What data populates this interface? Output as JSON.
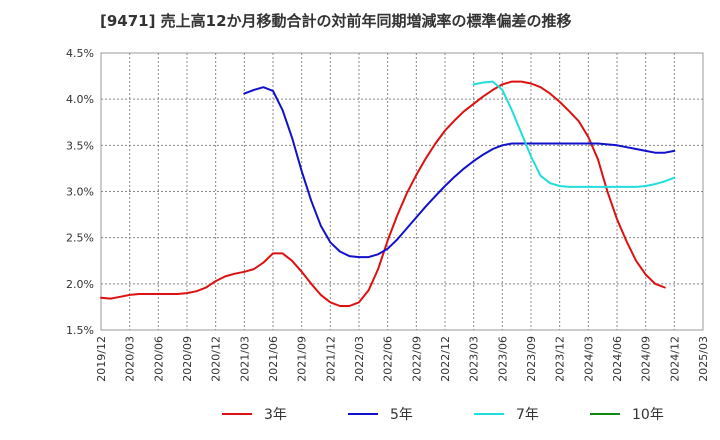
{
  "chart_data": {
    "type": "line",
    "title": "[9471]  売上高12か月移動合計の対前年同期増減率の標準偏差の推移",
    "xlabel": "",
    "ylabel": "",
    "x_range": [
      "2019-12",
      "2025-03"
    ],
    "ylim": [
      1.5,
      4.5
    ],
    "y_ticks": [
      "1.5%",
      "2.0%",
      "2.5%",
      "3.0%",
      "3.5%",
      "4.0%",
      "4.5%"
    ],
    "y_tick_values": [
      1.5,
      2.0,
      2.5,
      3.0,
      3.5,
      4.0,
      4.5
    ],
    "x_ticks": [
      "2019/12",
      "2020/03",
      "2020/06",
      "2020/09",
      "2020/12",
      "2021/03",
      "2021/06",
      "2021/09",
      "2021/12",
      "2022/03",
      "2022/06",
      "2022/09",
      "2022/12",
      "2023/03",
      "2023/06",
      "2023/09",
      "2023/12",
      "2024/03",
      "2024/06",
      "2024/09",
      "2024/12",
      "2025/03"
    ],
    "grid": true,
    "legend_position": "bottom",
    "series": [
      {
        "name": "3年",
        "color": "#dd1111",
        "x": [
          "2019-12",
          "2020-01",
          "2020-02",
          "2020-03",
          "2020-04",
          "2020-05",
          "2020-06",
          "2020-07",
          "2020-08",
          "2020-09",
          "2020-10",
          "2020-11",
          "2020-12",
          "2021-01",
          "2021-02",
          "2021-03",
          "2021-04",
          "2021-05",
          "2021-06",
          "2021-07",
          "2021-08",
          "2021-09",
          "2021-10",
          "2021-11",
          "2021-12",
          "2022-01",
          "2022-02",
          "2022-03",
          "2022-04",
          "2022-05",
          "2022-06",
          "2022-07",
          "2022-08",
          "2022-09",
          "2022-10",
          "2022-11",
          "2022-12",
          "2023-01",
          "2023-02",
          "2023-03",
          "2023-04",
          "2023-05",
          "2023-06",
          "2023-07",
          "2023-08",
          "2023-09",
          "2023-10",
          "2023-11",
          "2023-12",
          "2024-01",
          "2024-02",
          "2024-03",
          "2024-04",
          "2024-05",
          "2024-06",
          "2024-07",
          "2024-08",
          "2024-09",
          "2024-10",
          "2024-11",
          "2024-12"
        ],
        "values": [
          1.85,
          1.84,
          1.86,
          1.88,
          1.89,
          1.89,
          1.89,
          1.89,
          1.89,
          1.9,
          1.92,
          1.96,
          2.03,
          2.08,
          2.11,
          2.13,
          2.16,
          2.23,
          2.33,
          2.33,
          2.25,
          2.13,
          2.0,
          1.88,
          1.8,
          1.76,
          1.76,
          1.8,
          1.93,
          2.16,
          2.47,
          2.74,
          2.98,
          3.18,
          3.36,
          3.52,
          3.66,
          3.77,
          3.87,
          3.95,
          4.03,
          4.1,
          4.16,
          4.19,
          4.19,
          4.17,
          4.13,
          4.06,
          3.97,
          3.87,
          3.76,
          3.59,
          3.35,
          3.0,
          2.7,
          2.46,
          2.25,
          2.1,
          2.0,
          1.96,
          null
        ],
        "note_last": "ends 2024-12"
      },
      {
        "name": "5年",
        "color": "#1111cc",
        "x": [
          "2021-03",
          "2021-04",
          "2021-05",
          "2021-06",
          "2021-07",
          "2021-08",
          "2021-09",
          "2021-10",
          "2021-11",
          "2021-12",
          "2022-01",
          "2022-02",
          "2022-03",
          "2022-04",
          "2022-05",
          "2022-06",
          "2022-07",
          "2022-08",
          "2022-09",
          "2022-10",
          "2022-11",
          "2022-12",
          "2023-01",
          "2023-02",
          "2023-03",
          "2023-04",
          "2023-05",
          "2023-06",
          "2023-07",
          "2023-08",
          "2023-09",
          "2023-10",
          "2023-11",
          "2023-12",
          "2024-01",
          "2024-02",
          "2024-03",
          "2024-04",
          "2024-05",
          "2024-06",
          "2024-07",
          "2024-08",
          "2024-09",
          "2024-10",
          "2024-11",
          "2024-12"
        ],
        "values": [
          4.06,
          4.1,
          4.13,
          4.09,
          3.88,
          3.58,
          3.22,
          2.9,
          2.63,
          2.45,
          2.35,
          2.3,
          2.29,
          2.29,
          2.32,
          2.38,
          2.48,
          2.6,
          2.72,
          2.84,
          2.95,
          3.06,
          3.16,
          3.25,
          3.33,
          3.4,
          3.46,
          3.5,
          3.52,
          3.52,
          3.52,
          3.52,
          3.52,
          3.52,
          3.52,
          3.52,
          3.52,
          3.52,
          3.51,
          3.5,
          3.48,
          3.46,
          3.44,
          3.42,
          3.42,
          3.44
        ]
      },
      {
        "name": "7年",
        "color": "#22dddd",
        "x": [
          "2023-03",
          "2023-04",
          "2023-05",
          "2023-06",
          "2023-07",
          "2023-08",
          "2023-09",
          "2023-10",
          "2023-11",
          "2023-12",
          "2024-01",
          "2024-02",
          "2024-03",
          "2024-04",
          "2024-05",
          "2024-06",
          "2024-07",
          "2024-08",
          "2024-09",
          "2024-10",
          "2024-11",
          "2024-12"
        ],
        "values": [
          4.16,
          4.18,
          4.19,
          4.1,
          3.88,
          3.63,
          3.38,
          3.17,
          3.09,
          3.06,
          3.05,
          3.05,
          3.05,
          3.05,
          3.05,
          3.05,
          3.05,
          3.05,
          3.06,
          3.08,
          3.11,
          3.15
        ]
      },
      {
        "name": "10年",
        "color": "#118811",
        "x": [],
        "values": []
      }
    ]
  }
}
